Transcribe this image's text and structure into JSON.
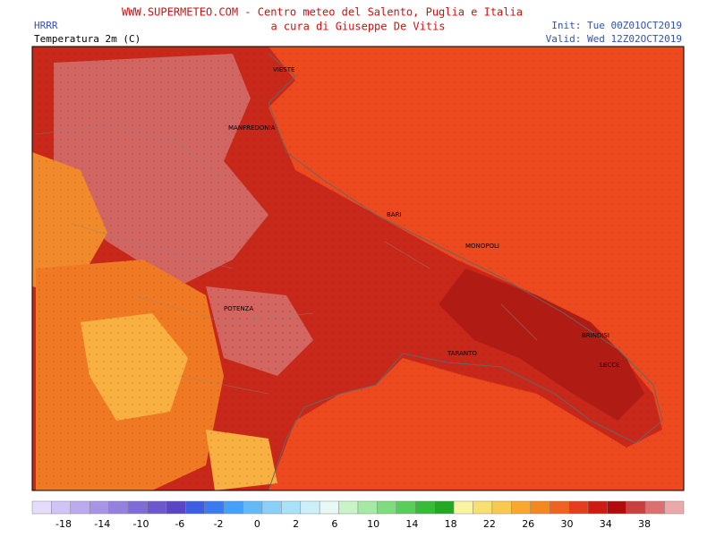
{
  "header": {
    "title": "WWW.SUPERMETEO.COM - Centro meteo del Salento, Puglia e Italia",
    "subtitle": "a cura di Giuseppe De Vitis",
    "model": "HRRR",
    "variable": "Temperatura 2m (C)",
    "init": "Init: Tue 00Z01OCT2019",
    "valid": "Valid: Wed 12Z02OCT2019"
  },
  "cities": [
    "VIESTE",
    "MANFREDONIA",
    "BARI",
    "MONOPOLI",
    "BRINDISI",
    "LECCE",
    "POTENZA",
    "TARANTO"
  ],
  "colorbar": {
    "labels": [
      "-18",
      "-14",
      "-10",
      "-6",
      "-2",
      "0",
      "2",
      "6",
      "10",
      "14",
      "18",
      "22",
      "26",
      "30",
      "34",
      "38"
    ],
    "colors": [
      "#e4dcfa",
      "#d0c4f4",
      "#bcaaee",
      "#a894e6",
      "#9480de",
      "#806cd6",
      "#6c58cc",
      "#5a46c2",
      "#3c5ee0",
      "#3a7cf0",
      "#44a0f8",
      "#64baf8",
      "#88d0f8",
      "#a8e2f8",
      "#cceff8",
      "#e8f8f4",
      "#c8f4c8",
      "#a4eaa4",
      "#7edc7e",
      "#58ce58",
      "#36bc36",
      "#22a822",
      "#f8f4a0",
      "#f8e070",
      "#f8c850",
      "#f8a830",
      "#f48820",
      "#ec6420",
      "#e43c1c",
      "#cc1c14",
      "#b00c0c",
      "#c84040",
      "#dc7070",
      "#eca8a8"
    ]
  }
}
